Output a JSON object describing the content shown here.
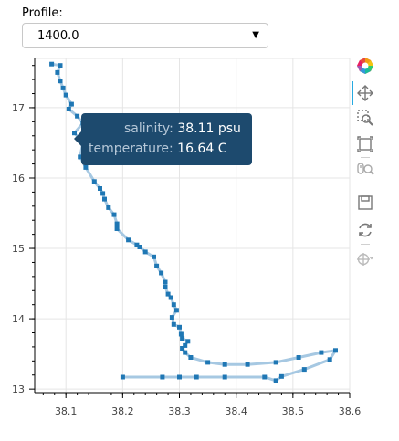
{
  "widget": {
    "label": "Profile:",
    "selected": "1400.0"
  },
  "toolbar": {
    "tools": [
      "bokeh-logo-icon",
      "pan-icon",
      "box-zoom-icon",
      "box-select-icon",
      "wheel-zoom-icon",
      "save-icon",
      "reset-icon",
      "hover-icon"
    ],
    "active": "pan-icon"
  },
  "tooltip": {
    "salinity_label": "salinity:",
    "salinity_value": "38.11 psu",
    "temperature_label": "temperature:",
    "temperature_value": "16.64 C"
  },
  "chart_data": {
    "type": "line",
    "title": "",
    "xlabel": "",
    "ylabel": "",
    "xlim": [
      38.045,
      38.6
    ],
    "ylim": [
      12.95,
      17.7
    ],
    "xticks": [
      38.1,
      38.2,
      38.3,
      38.4,
      38.5,
      38.6
    ],
    "yticks": [
      13,
      14,
      15,
      16,
      17
    ],
    "xtick_labels": [
      "38.1",
      "38.2",
      "38.3",
      "38.4",
      "38.5",
      "38.6"
    ],
    "ytick_labels": [
      "13",
      "14",
      "15",
      "16",
      "17"
    ],
    "grid": true,
    "line_color": "#a6c8e2",
    "marker_color": "#1f77b4",
    "series": [
      {
        "x": [
          38.075,
          38.09,
          38.085,
          38.09,
          38.095,
          38.1,
          38.11,
          38.105,
          38.12,
          38.13,
          38.115,
          38.13,
          38.125,
          38.135,
          38.15,
          38.16,
          38.165,
          38.168,
          38.175,
          38.185,
          38.19,
          38.19,
          38.21,
          38.225,
          38.23,
          38.24,
          38.255,
          38.26,
          38.268,
          38.275,
          38.275,
          38.28,
          38.285,
          38.29,
          38.295,
          38.287,
          38.29,
          38.3,
          38.303,
          38.305,
          38.315,
          38.31,
          38.305,
          38.31,
          38.32,
          38.35,
          38.38,
          38.42,
          38.47,
          38.51,
          38.55,
          38.575,
          38.565,
          38.52,
          38.48,
          38.47,
          38.45,
          38.38,
          38.33,
          38.3,
          38.27,
          38.2
        ],
        "y": [
          17.62,
          17.6,
          17.5,
          17.38,
          17.28,
          17.18,
          17.05,
          16.98,
          16.88,
          16.78,
          16.64,
          16.5,
          16.3,
          16.15,
          15.95,
          15.85,
          15.78,
          15.7,
          15.58,
          15.48,
          15.35,
          15.28,
          15.12,
          15.05,
          15.02,
          14.95,
          14.88,
          14.75,
          14.65,
          14.52,
          14.45,
          14.35,
          14.3,
          14.2,
          14.12,
          14.02,
          13.92,
          13.88,
          13.78,
          13.72,
          13.68,
          13.62,
          13.58,
          13.52,
          13.45,
          13.38,
          13.35,
          13.35,
          13.38,
          13.45,
          13.52,
          13.55,
          13.42,
          13.28,
          13.18,
          13.12,
          13.17,
          13.17,
          13.17,
          13.17,
          13.17,
          13.17
        ]
      }
    ]
  }
}
